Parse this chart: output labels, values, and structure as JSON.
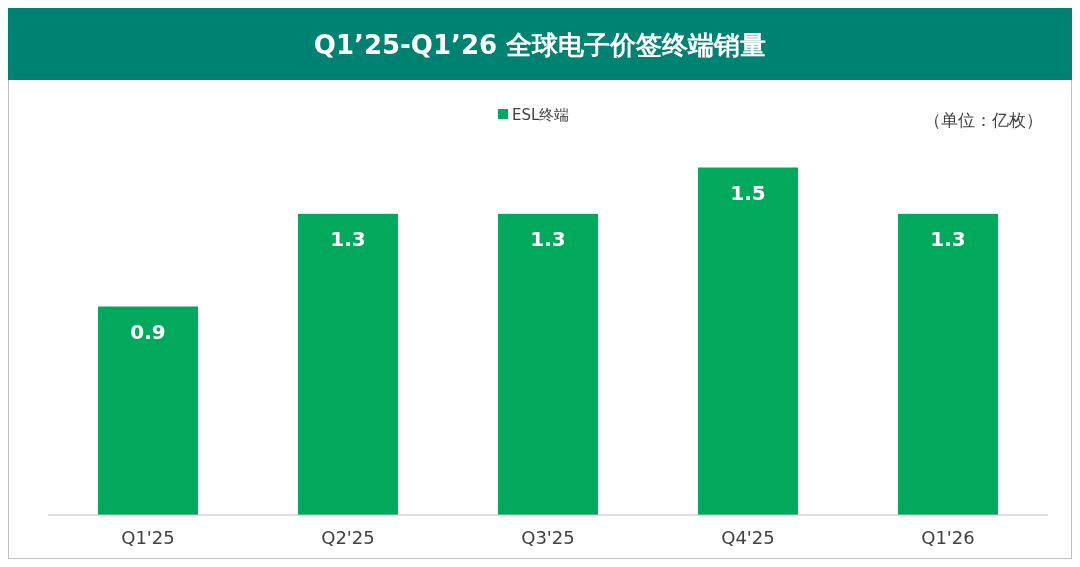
{
  "chart_data": {
    "type": "bar",
    "title": "Q1’25-Q1’26  全球电子价签终端销量",
    "categories": [
      "Q1'25",
      "Q2'25",
      "Q3'25",
      "Q4'25",
      "Q1'26"
    ],
    "series": [
      {
        "name": "ESL终端",
        "color": "#00a95c",
        "values": [
          0.9,
          1.3,
          1.3,
          1.5,
          1.3
        ]
      }
    ],
    "tick_labels": "x",
    "data_labels": true,
    "legend": "top",
    "grid": false,
    "annotations": [
      "（单位：亿枚）"
    ]
  }
}
